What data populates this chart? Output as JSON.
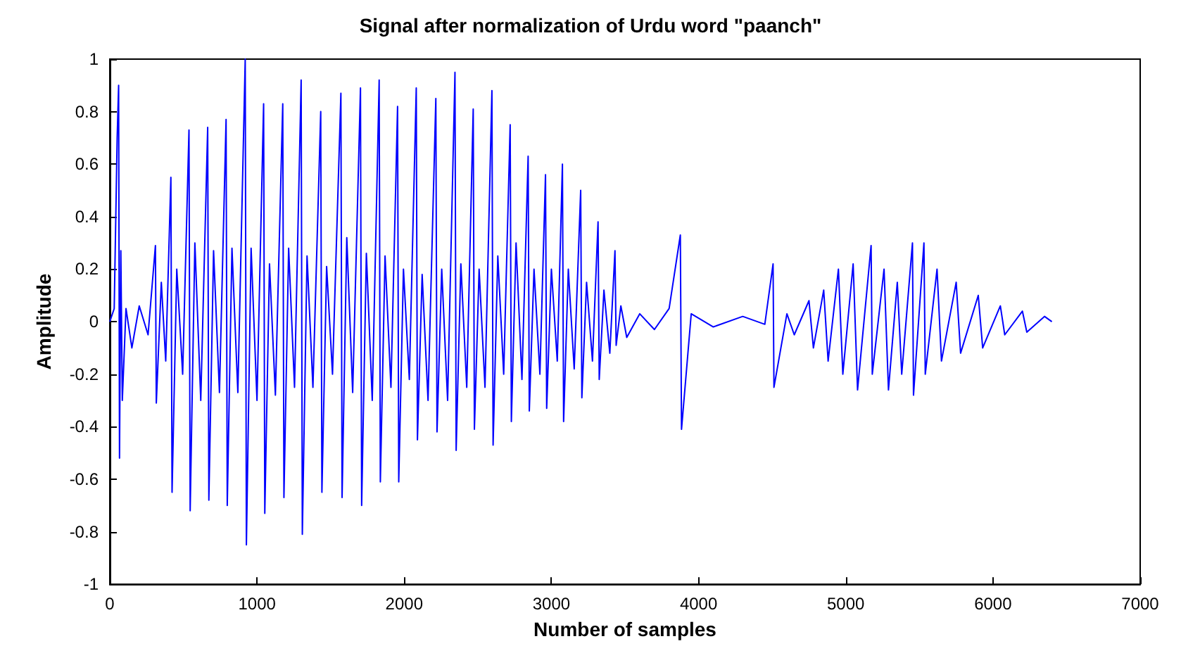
{
  "chart_data": {
    "type": "line",
    "title": "Signal after normalization of Urdu word \"paanch\"",
    "xlabel": "Number of samples",
    "ylabel": "Amplitude",
    "xlim": [
      0,
      7000
    ],
    "xticks": [
      0,
      1000,
      2000,
      3000,
      4000,
      5000,
      6000,
      7000
    ],
    "ylim": [
      -1,
      1
    ],
    "yticks": [
      -1,
      -0.8,
      -0.6,
      -0.4,
      -0.2,
      0,
      0.2,
      0.4,
      0.6,
      0.8,
      1
    ],
    "marker": "none",
    "line_style": "solid",
    "x": [
      0,
      30,
      50,
      60,
      66,
      75,
      85,
      110,
      150,
      200,
      260,
      310,
      316,
      350,
      380,
      415,
      423,
      455,
      495,
      538,
      546,
      578,
      618,
      665,
      673,
      705,
      745,
      790,
      798,
      830,
      870,
      920,
      928,
      960,
      1000,
      1045,
      1053,
      1085,
      1125,
      1175,
      1183,
      1215,
      1255,
      1300,
      1308,
      1340,
      1380,
      1433,
      1441,
      1473,
      1513,
      1570,
      1578,
      1610,
      1650,
      1703,
      1711,
      1743,
      1783,
      1830,
      1838,
      1870,
      1910,
      1955,
      1963,
      1995,
      2035,
      2082,
      2090,
      2122,
      2162,
      2215,
      2223,
      2255,
      2295,
      2345,
      2353,
      2385,
      2425,
      2469,
      2477,
      2509,
      2549,
      2596,
      2604,
      2636,
      2676,
      2720,
      2728,
      2760,
      2800,
      2842,
      2850,
      2882,
      2922,
      2960,
      2968,
      3000,
      3040,
      3075,
      3083,
      3115,
      3155,
      3199,
      3207,
      3239,
      3279,
      3317,
      3325,
      3357,
      3397,
      3432,
      3440,
      3472,
      3512,
      3600,
      3700,
      3800,
      3876,
      3884,
      3950,
      4100,
      4300,
      4450,
      4506,
      4512,
      4600,
      4650,
      4750,
      4780,
      4850,
      4880,
      4950,
      4980,
      5050,
      5080,
      5172,
      5180,
      5260,
      5290,
      5350,
      5380,
      5453,
      5460,
      5531,
      5540,
      5620,
      5650,
      5750,
      5780,
      5900,
      5930,
      6050,
      6080,
      6200,
      6230,
      6350,
      6400
    ],
    "series": [
      {
        "color": "#0000ff",
        "values": [
          0,
          0.05,
          0.7,
          0.9,
          -0.52,
          0.27,
          -0.3,
          0.05,
          -0.1,
          0.06,
          -0.05,
          0.29,
          -0.31,
          0.15,
          -0.15,
          0.55,
          -0.65,
          0.2,
          -0.2,
          0.73,
          -0.72,
          0.3,
          -0.3,
          0.74,
          -0.68,
          0.27,
          -0.27,
          0.77,
          -0.7,
          0.28,
          -0.27,
          1.0,
          -0.85,
          0.28,
          -0.3,
          0.83,
          -0.73,
          0.22,
          -0.28,
          0.83,
          -0.67,
          0.28,
          -0.25,
          0.92,
          -0.81,
          0.25,
          -0.25,
          0.8,
          -0.65,
          0.21,
          -0.2,
          0.87,
          -0.67,
          0.32,
          -0.27,
          0.89,
          -0.7,
          0.26,
          -0.3,
          0.92,
          -0.61,
          0.25,
          -0.25,
          0.82,
          -0.61,
          0.2,
          -0.22,
          0.89,
          -0.45,
          0.18,
          -0.3,
          0.85,
          -0.42,
          0.2,
          -0.3,
          0.95,
          -0.49,
          0.22,
          -0.25,
          0.81,
          -0.41,
          0.2,
          -0.25,
          0.88,
          -0.47,
          0.25,
          -0.2,
          0.75,
          -0.38,
          0.3,
          -0.22,
          0.63,
          -0.34,
          0.2,
          -0.2,
          0.56,
          -0.33,
          0.2,
          -0.15,
          0.6,
          -0.38,
          0.2,
          -0.18,
          0.5,
          -0.29,
          0.15,
          -0.15,
          0.38,
          -0.22,
          0.12,
          -0.12,
          0.27,
          -0.09,
          0.06,
          -0.06,
          0.03,
          -0.03,
          0.05,
          0.33,
          -0.41,
          0.03,
          -0.02,
          0.02,
          -0.01,
          0.22,
          -0.25,
          0.03,
          -0.05,
          0.08,
          -0.1,
          0.12,
          -0.15,
          0.2,
          -0.2,
          0.22,
          -0.26,
          0.29,
          -0.2,
          0.2,
          -0.26,
          0.15,
          -0.2,
          0.3,
          -0.28,
          0.3,
          -0.2,
          0.2,
          -0.15,
          0.15,
          -0.12,
          0.1,
          -0.1,
          0.06,
          -0.05,
          0.04,
          -0.04,
          0.02,
          0
        ]
      }
    ]
  }
}
